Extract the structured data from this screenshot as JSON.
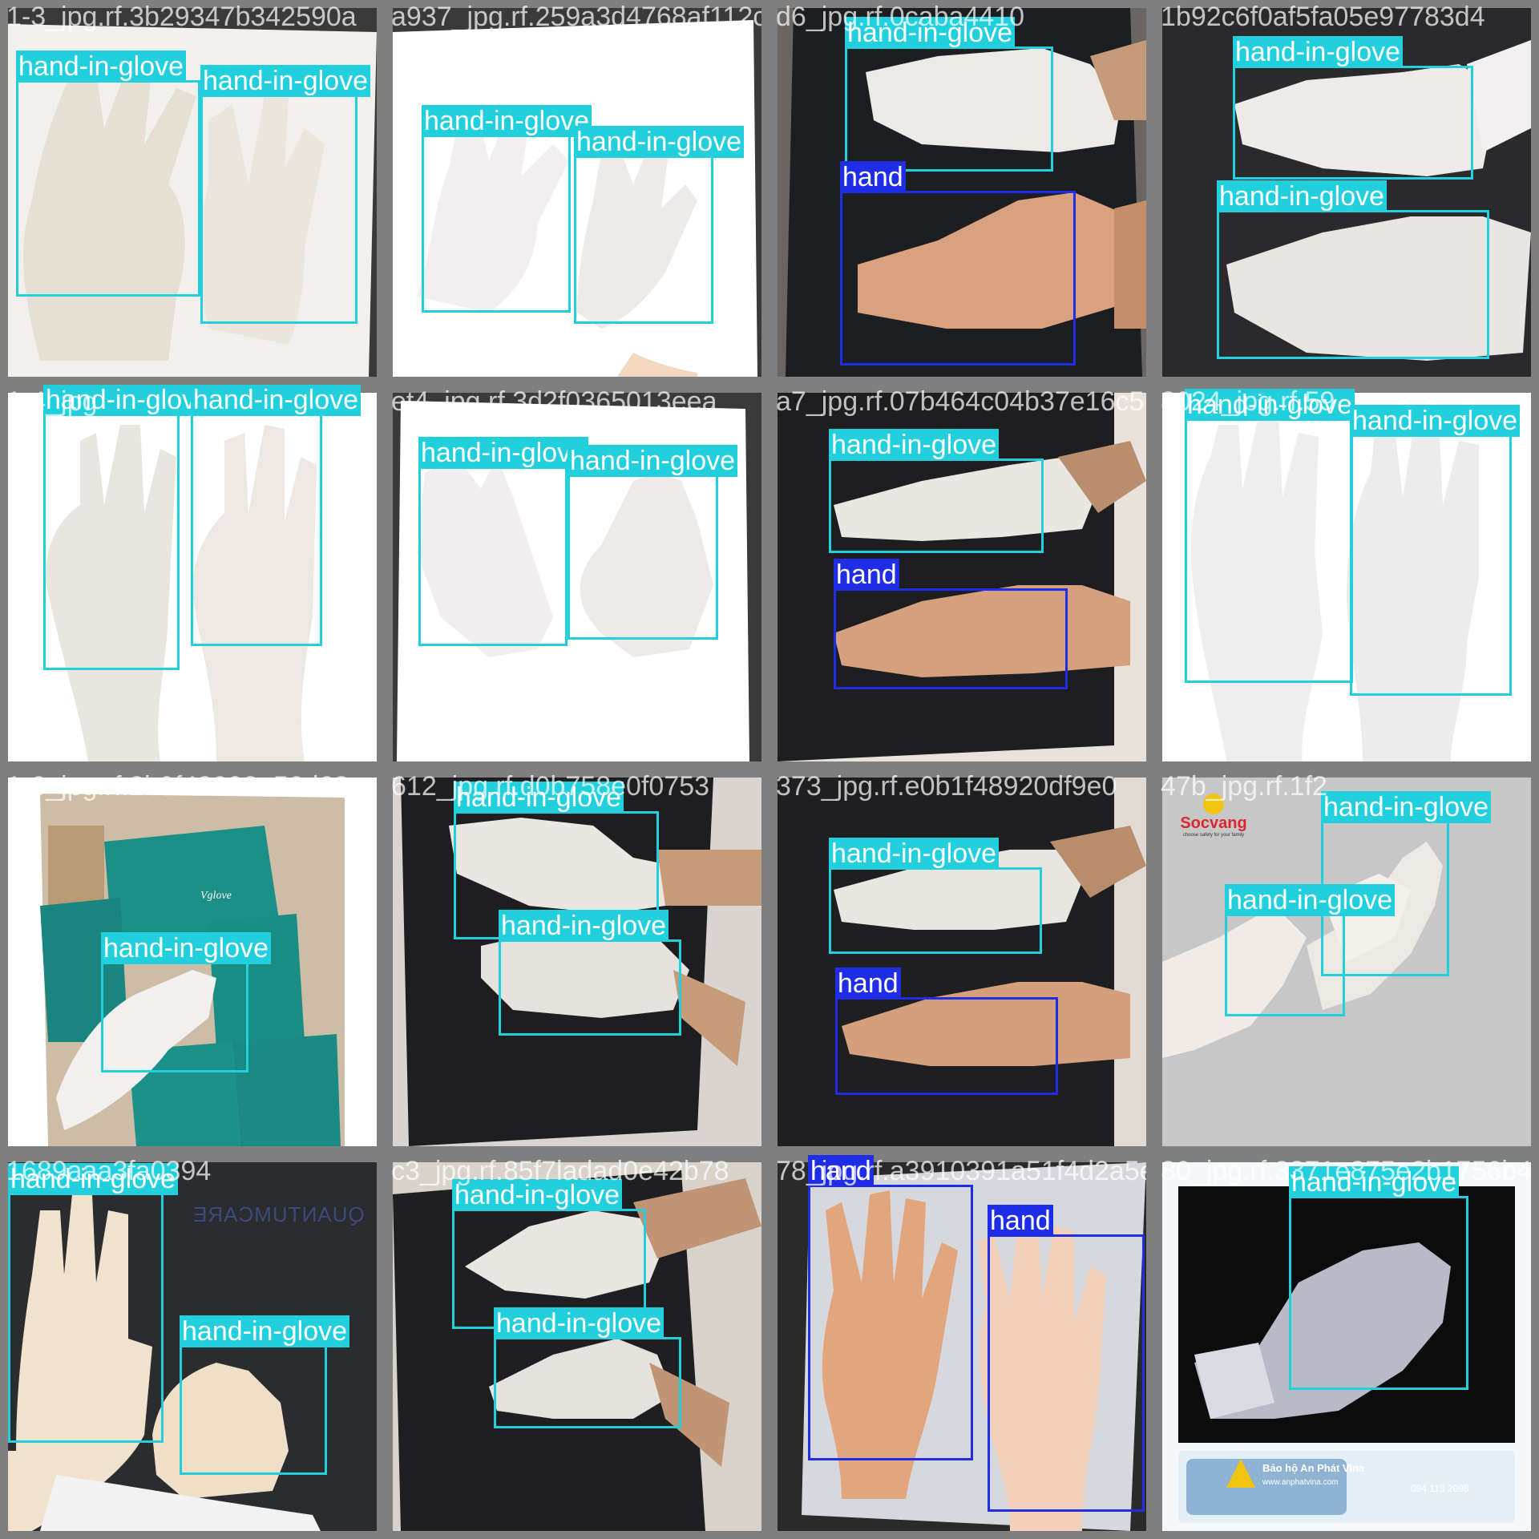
{
  "colors": {
    "hand_in_glove": "#22d0dd",
    "hand": "#1f2ee6",
    "grid": "#7f7f7f"
  },
  "classes": {
    "glove": "hand-in-glove",
    "hand": "hand"
  },
  "tiles": [
    {
      "filename": "1-3_jpg.rf.3b29347b342590a",
      "boxes": [
        {
          "label": "hand-in-glove"
        },
        {
          "label": "hand-in-glove"
        }
      ]
    },
    {
      "filename": "a937_jpg.rf.259a3d4768af112c",
      "boxes": [
        {
          "label": "hand-in-glove"
        },
        {
          "label": "hand-in-glove"
        }
      ]
    },
    {
      "filename": "d6_jpg.rf.0caba4410",
      "boxes": [
        {
          "label": "hand-in-glove"
        },
        {
          "label": "hand"
        }
      ]
    },
    {
      "filename": "1b92c6f0af5fa05e97783d4",
      "boxes": [
        {
          "label": "hand-in-glove"
        },
        {
          "label": "hand-in-glove"
        }
      ]
    },
    {
      "filename": "1-4_jpg",
      "boxes": [
        {
          "label": "hand-in-glove"
        },
        {
          "label": "hand-in-glove"
        }
      ]
    },
    {
      "filename": "et4_jpg.rf.3d2f0365013eea",
      "boxes": [
        {
          "label": "hand-in-glove"
        },
        {
          "label": "hand-in-glove"
        }
      ]
    },
    {
      "filename": "a7_jpg.rf.07b464c04b37e16c5",
      "boxes": [
        {
          "label": "hand-in-glove"
        },
        {
          "label": "hand"
        }
      ]
    },
    {
      "filename": "8024_jpg.rf.59",
      "boxes": [
        {
          "label": "hand-in-glove"
        },
        {
          "label": "hand-in-glove"
        }
      ]
    },
    {
      "filename": "1-6_jpg.rf.2b9f48092e56d62",
      "boxes": [
        {
          "label": "hand-in-glove"
        }
      ]
    },
    {
      "filename": "612_jpg.rf.d0b758e0f0753",
      "boxes": [
        {
          "label": "hand-in-glove"
        },
        {
          "label": "hand-in-glove"
        }
      ]
    },
    {
      "filename": "373_jpg.rf.e0b1f48920df9e0",
      "boxes": [
        {
          "label": "hand-in-glove"
        },
        {
          "label": "hand"
        }
      ]
    },
    {
      "filename": "47b_jpg.rf.1f2",
      "boxes": [
        {
          "label": "hand-in-glove"
        },
        {
          "label": "hand-in-glove"
        }
      ]
    },
    {
      "filename": "1689aaa3fa0394",
      "boxes": [
        {
          "label": "hand-in-glove"
        },
        {
          "label": "hand-in-glove"
        }
      ]
    },
    {
      "filename": "c3_jpg.rf.85f7ladad0e42b78",
      "boxes": [
        {
          "label": "hand-in-glove"
        },
        {
          "label": "hand-in-glove"
        }
      ]
    },
    {
      "filename": "78_jpg.rf.a3910391a51f4d2a5e",
      "boxes": [
        {
          "label": "hand"
        },
        {
          "label": "hand"
        }
      ]
    },
    {
      "filename": "80_jpg.rf.3371e875e2b1756b4",
      "boxes": [
        {
          "label": "hand-in-glove"
        }
      ]
    }
  ],
  "logos": {
    "socvang": "Socvang",
    "socvang_tag": "choose safety for your family",
    "quantum": "QUANTUMCARE",
    "vglove": "Vglove",
    "anphat_name": "Bảo hộ An Phát Vina",
    "anphat_url": "www.anphatvina.com",
    "anphat_phone": "094 113 2098"
  }
}
